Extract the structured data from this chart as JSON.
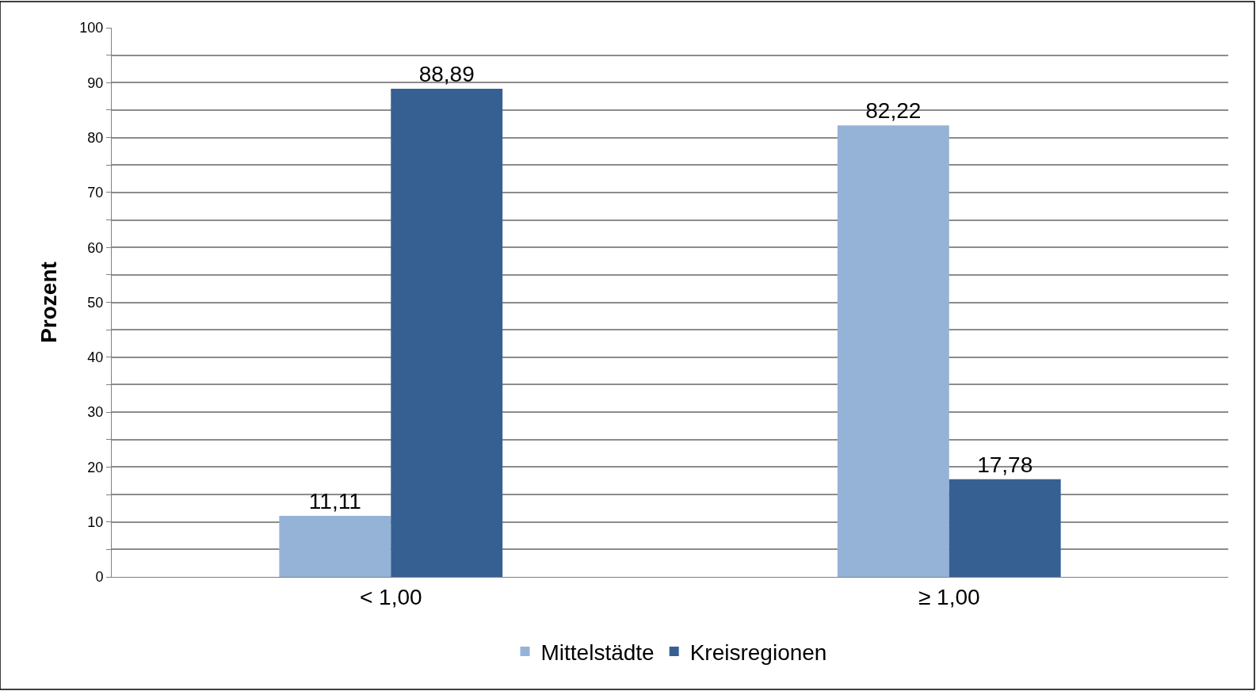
{
  "chart_data": {
    "type": "bar",
    "ylabel": "Prozent",
    "categories": [
      "< 1,00",
      "≥ 1,00"
    ],
    "series": [
      {
        "name": "Mittelstädte",
        "color": "#95b3d7",
        "values": [
          11.11,
          82.22
        ],
        "value_labels": [
          "11,11",
          "82,22"
        ]
      },
      {
        "name": "Kreisregionen",
        "color": "#366092",
        "values": [
          88.89,
          17.78
        ],
        "value_labels": [
          "88,89",
          "17,78"
        ]
      }
    ],
    "ylim": [
      0,
      100
    ],
    "yticks": [
      0,
      {
        "value": 5,
        "label": null
      },
      10,
      {
        "value": 15,
        "label": null
      },
      20,
      {
        "value": 25,
        "label": null
      },
      30,
      {
        "value": 35,
        "label": null
      },
      40,
      {
        "value": 45,
        "label": null
      },
      50,
      {
        "value": 55,
        "label": null
      },
      60,
      {
        "value": 65,
        "label": null
      },
      70,
      {
        "value": 75,
        "label": null
      },
      80,
      {
        "value": 85,
        "label": null
      },
      90,
      {
        "value": 95,
        "label": null
      },
      100
    ],
    "grid": "y",
    "legend": "bottom"
  }
}
